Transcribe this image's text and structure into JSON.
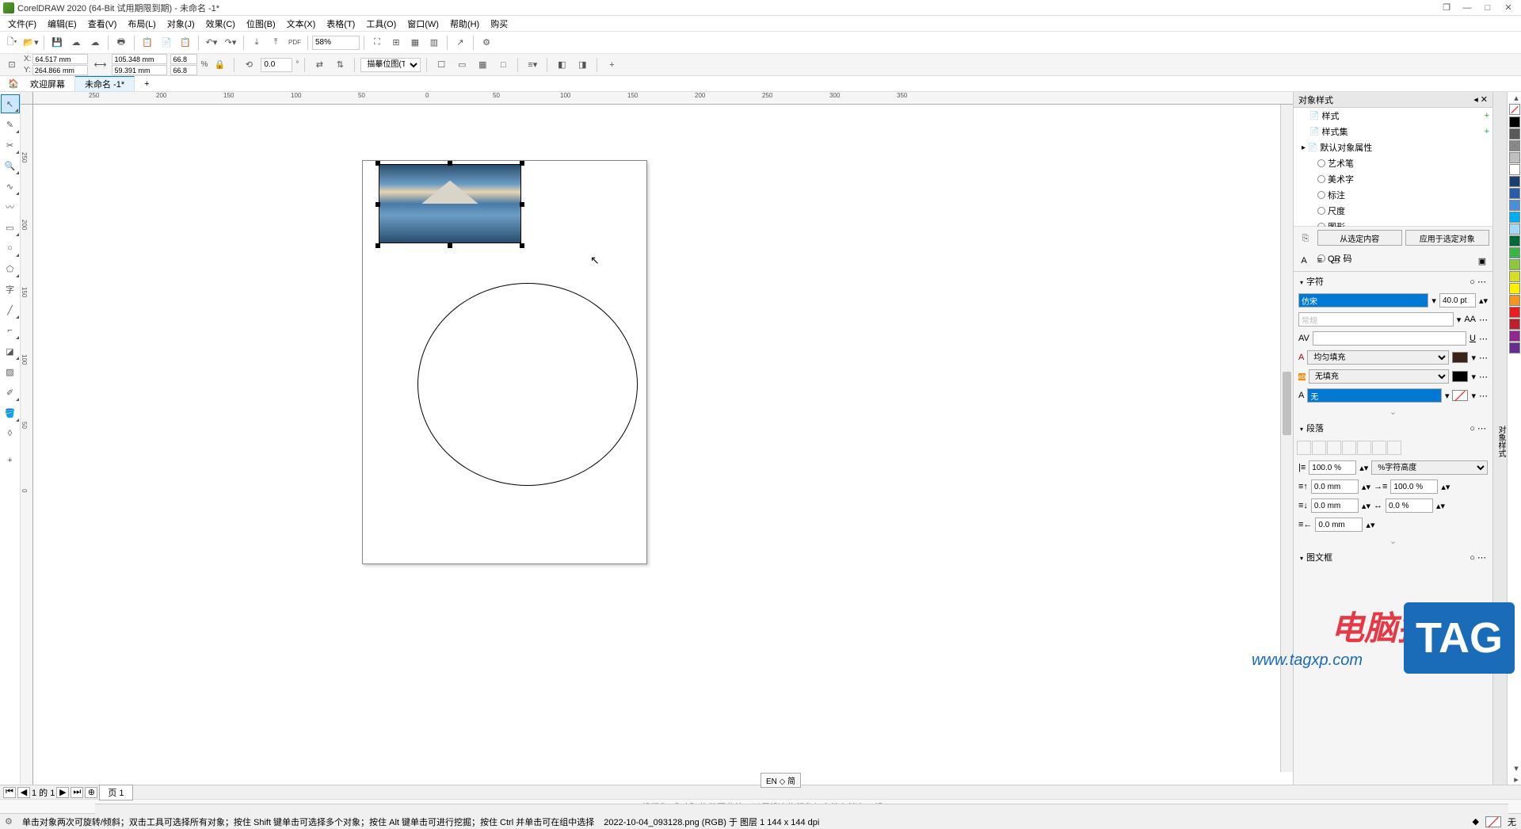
{
  "title": "CorelDRAW 2020 (64-Bit 试用期限到期) - 未命名 -1*",
  "menus": [
    "文件(F)",
    "编辑(E)",
    "查看(V)",
    "布局(L)",
    "对象(J)",
    "效果(C)",
    "位图(B)",
    "文本(X)",
    "表格(T)",
    "工具(O)",
    "窗口(W)",
    "帮助(H)",
    "购买"
  ],
  "toolbar1": {
    "zoom": "58%"
  },
  "propbar": {
    "x": "64.517 mm",
    "y": "264.866 mm",
    "w": "105.348 mm",
    "h": "59.391 mm",
    "sx": "66.8",
    "sy": "66.8",
    "pct": "%",
    "rot": "0.0",
    "trace": "描摹位图(T)"
  },
  "tabs": {
    "welcome": "欢迎屏幕",
    "doc": "未命名 -1*"
  },
  "ruler_h": [
    "0",
    "50",
    "100",
    "150",
    "200",
    "250",
    "300",
    "350"
  ],
  "ruler_h_neg": [
    "250",
    "200",
    "150",
    "100",
    "50"
  ],
  "ruler_v": [
    "0",
    "50",
    "100",
    "150",
    "200",
    "250"
  ],
  "right": {
    "styles_title": "对象样式",
    "style": "样式",
    "styleset": "样式集",
    "default_attrs": "默认对象属性",
    "attrs": [
      "艺术笔",
      "美术字",
      "标注",
      "尺度",
      "图形",
      "段落文本",
      "QR 码"
    ],
    "from_sel": "从选定内容",
    "apply_sel": "应用于选定对象",
    "char": "字符",
    "font": "仿宋",
    "fontsize": "40.0 pt",
    "font_style": "常规",
    "fill": "均匀填充",
    "nofill": "无填充",
    "outline_none": "无",
    "para": "段落",
    "pct100": "100.0 %",
    "char_height": "%字符高度",
    "mm0": "0.0 mm",
    "pct1002": "100.0 %",
    "pct0": "0.0 %",
    "frame": "图文框"
  },
  "palette_colors": [
    "#000000",
    "#595959",
    "#898989",
    "#bfbfbf",
    "#ffffff",
    "#1a3e6e",
    "#2a5caa",
    "#4a90d9",
    "#00aeef",
    "#a2d9f7",
    "#006838",
    "#39b54a",
    "#8dc63f",
    "#d7df23",
    "#fff200",
    "#f7941e",
    "#ed1c24",
    "#be1e2d",
    "#92278f",
    "#662d91"
  ],
  "pagenav": {
    "info": "1 的 1",
    "page": "页 1"
  },
  "hint": "将颜色(或对象)拖动至此处，以便将这些颜色与文档存储在一起",
  "status": {
    "help": "单击对象两次可旋转/倾斜；双击工具可选择所有对象；按住 Shift 键单击可选择多个对象；按住 Alt 键单击可进行挖掘；按住 Ctrl 并单击可在组中选择",
    "info": "2022-10-04_093128.png (RGB) 于 图层 1 144 x 144 dpi",
    "fill_none": "无",
    "lang": "EN ◇ 简"
  },
  "watermark": "电脑技术网",
  "watermark_url": "www.tagxp.com",
  "tag": "TAG"
}
